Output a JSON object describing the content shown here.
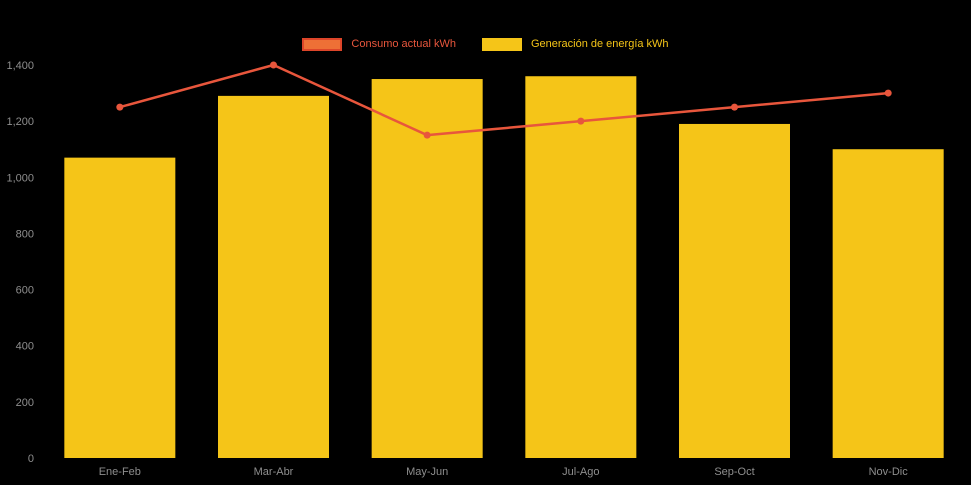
{
  "chart_data": {
    "type": "bar",
    "title": "",
    "xlabel": "",
    "ylabel": "",
    "categories": [
      "Ene-Feb",
      "Mar-Abr",
      "May-Jun",
      "Jul-Ago",
      "Sep-Oct",
      "Nov-Dic"
    ],
    "series": [
      {
        "name": "Consumo actual kWh",
        "type": "line",
        "color": "#E8563C",
        "swatch_fill": "#EE7036",
        "swatch_border": "#DD4529",
        "values": [
          1250,
          1400,
          1150,
          1200,
          1250,
          1300
        ]
      },
      {
        "name": "Generación de energía kWh",
        "type": "bar",
        "color": "#F5C518",
        "swatch_fill": "#F5C518",
        "swatch_border": "#F5C518",
        "values": [
          1070,
          1290,
          1350,
          1360,
          1190,
          1100
        ]
      }
    ],
    "ylim": [
      0,
      1400
    ],
    "ytick_step": 200,
    "ytick_labels": [
      "0",
      "200",
      "400",
      "600",
      "800",
      "1,000",
      "1,200",
      "1,400"
    ],
    "grid": false,
    "legend_position": "top",
    "background_color": "#000000",
    "axis_text_color": "#8E8E8E"
  }
}
